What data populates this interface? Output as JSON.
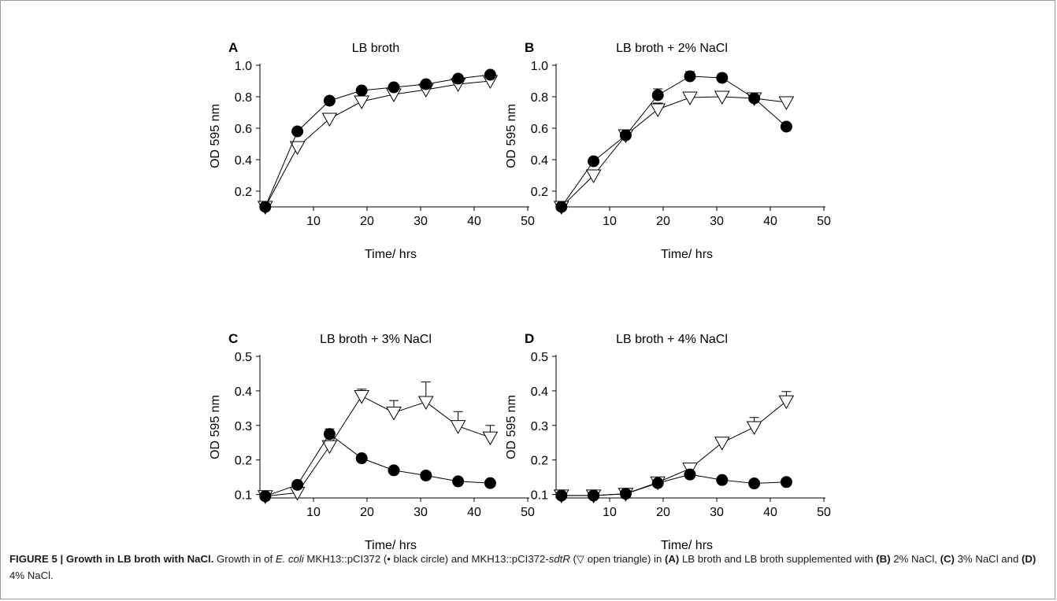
{
  "chart_data": [
    {
      "panel": "A",
      "type": "line",
      "title": "LB broth",
      "xlabel": "Time/ hrs",
      "ylabel": "OD 595 nm",
      "xlim": [
        0,
        50
      ],
      "ylim": [
        0.1,
        1.0
      ],
      "xticks": [
        10,
        20,
        30,
        40,
        50
      ],
      "yticks": [
        0.2,
        0.4,
        0.6,
        0.8,
        1.0
      ],
      "ytick_labels": [
        "0.2",
        "0.4",
        "0.6",
        "0.8",
        "1.0"
      ],
      "grid": false,
      "series": [
        {
          "marker": "filled-circle",
          "x": [
            1,
            7,
            13,
            19,
            25,
            31,
            37,
            43
          ],
          "y": [
            0.1,
            0.58,
            0.775,
            0.84,
            0.86,
            0.88,
            0.915,
            0.94
          ],
          "err": [
            0,
            0,
            0,
            0,
            0,
            0,
            0,
            0
          ]
        },
        {
          "marker": "open-triangle-down",
          "x": [
            1,
            7,
            13,
            19,
            25,
            31,
            37,
            43
          ],
          "y": [
            0.1,
            0.48,
            0.66,
            0.77,
            0.815,
            0.845,
            0.88,
            0.9
          ],
          "err": [
            0,
            0,
            0.02,
            0,
            0,
            0,
            0,
            0
          ]
        }
      ]
    },
    {
      "panel": "B",
      "type": "line",
      "title": "LB broth + 2% NaCl",
      "xlabel": "Time/ hrs",
      "ylabel": "OD 595 nm",
      "xlim": [
        0,
        50
      ],
      "ylim": [
        0.1,
        1.0
      ],
      "xticks": [
        10,
        20,
        30,
        40,
        50
      ],
      "yticks": [
        0.2,
        0.4,
        0.6,
        0.8,
        1.0
      ],
      "ytick_labels": [
        "0.2",
        "0.4",
        "0.6",
        "0.8",
        "1.0"
      ],
      "grid": false,
      "series": [
        {
          "marker": "filled-circle",
          "x": [
            1,
            7,
            13,
            19,
            25,
            31,
            37,
            43
          ],
          "y": [
            0.1,
            0.39,
            0.555,
            0.81,
            0.93,
            0.92,
            0.79,
            0.61
          ],
          "err": [
            0,
            0,
            0,
            0.04,
            0.03,
            0.025,
            0,
            0
          ]
        },
        {
          "marker": "open-triangle-down",
          "x": [
            1,
            7,
            13,
            19,
            25,
            31,
            37,
            43
          ],
          "y": [
            0.1,
            0.3,
            0.555,
            0.72,
            0.795,
            0.8,
            0.79,
            0.765
          ],
          "err": [
            0,
            0,
            0,
            0.04,
            0,
            0,
            0,
            0
          ]
        }
      ]
    },
    {
      "panel": "C",
      "type": "line",
      "title": "LB broth + 3% NaCl",
      "xlabel": "Time/ hrs",
      "ylabel": "OD 595 nm",
      "xlim": [
        0,
        50
      ],
      "ylim": [
        0.09,
        0.5
      ],
      "xticks": [
        10,
        20,
        30,
        40,
        50
      ],
      "yticks": [
        0.1,
        0.2,
        0.3,
        0.4,
        0.5
      ],
      "ytick_labels": [
        "0.1",
        "0.2",
        "0.3",
        "0.4",
        "0.5"
      ],
      "grid": false,
      "series": [
        {
          "marker": "filled-circle",
          "x": [
            1,
            7,
            13,
            19,
            25,
            31,
            37,
            43
          ],
          "y": [
            0.095,
            0.128,
            0.275,
            0.205,
            0.17,
            0.155,
            0.138,
            0.133
          ],
          "err": [
            0,
            0,
            0.015,
            0,
            0,
            0,
            0,
            0
          ]
        },
        {
          "marker": "open-triangle-down",
          "x": [
            1,
            7,
            13,
            19,
            25,
            31,
            37,
            43
          ],
          "y": [
            0.095,
            0.105,
            0.24,
            0.385,
            0.337,
            0.368,
            0.298,
            0.265
          ],
          "err": [
            0,
            0,
            0,
            0.02,
            0.035,
            0.058,
            0.042,
            0.035
          ]
        }
      ]
    },
    {
      "panel": "D",
      "type": "line",
      "title": "LB broth + 4% NaCl",
      "xlabel": "Time/ hrs",
      "ylabel": "OD 595 nm",
      "xlim": [
        0,
        50
      ],
      "ylim": [
        0.09,
        0.5
      ],
      "xticks": [
        10,
        20,
        30,
        40,
        50
      ],
      "yticks": [
        0.1,
        0.2,
        0.3,
        0.4,
        0.5
      ],
      "ytick_labels": [
        "0.1",
        "0.2",
        "0.3",
        "0.4",
        "0.5"
      ],
      "grid": false,
      "series": [
        {
          "marker": "filled-circle",
          "x": [
            1,
            7,
            13,
            19,
            25,
            31,
            37,
            43
          ],
          "y": [
            0.097,
            0.097,
            0.102,
            0.133,
            0.158,
            0.142,
            0.132,
            0.136
          ],
          "err": [
            0,
            0,
            0,
            0,
            0,
            0,
            0,
            0
          ]
        },
        {
          "marker": "open-triangle-down",
          "x": [
            1,
            7,
            13,
            19,
            25,
            31,
            37,
            43
          ],
          "y": [
            0.097,
            0.097,
            0.102,
            0.135,
            0.175,
            0.25,
            0.295,
            0.37
          ],
          "err": [
            0,
            0,
            0,
            0,
            0.01,
            0.015,
            0.028,
            0.028
          ]
        }
      ]
    }
  ],
  "caption": {
    "heading": "FIGURE 5 | Growth in LB broth with NaCl.",
    "t1": " Growth in of ",
    "species": "E. coli",
    "t2": " MKH13::pCI372 (• black circle) and MKH13::pCI372-",
    "gene": "sdtR",
    "t3": " (▽ open triangle) in ",
    "refA": "(A)",
    "t4": " LB broth and LB broth supplemented with ",
    "refB": "(B)",
    "t5": " 2% NaCl, ",
    "refC": "(C)",
    "t6": " 3% NaCl and ",
    "refD": "(D)",
    "t7": " 4% NaCl."
  }
}
